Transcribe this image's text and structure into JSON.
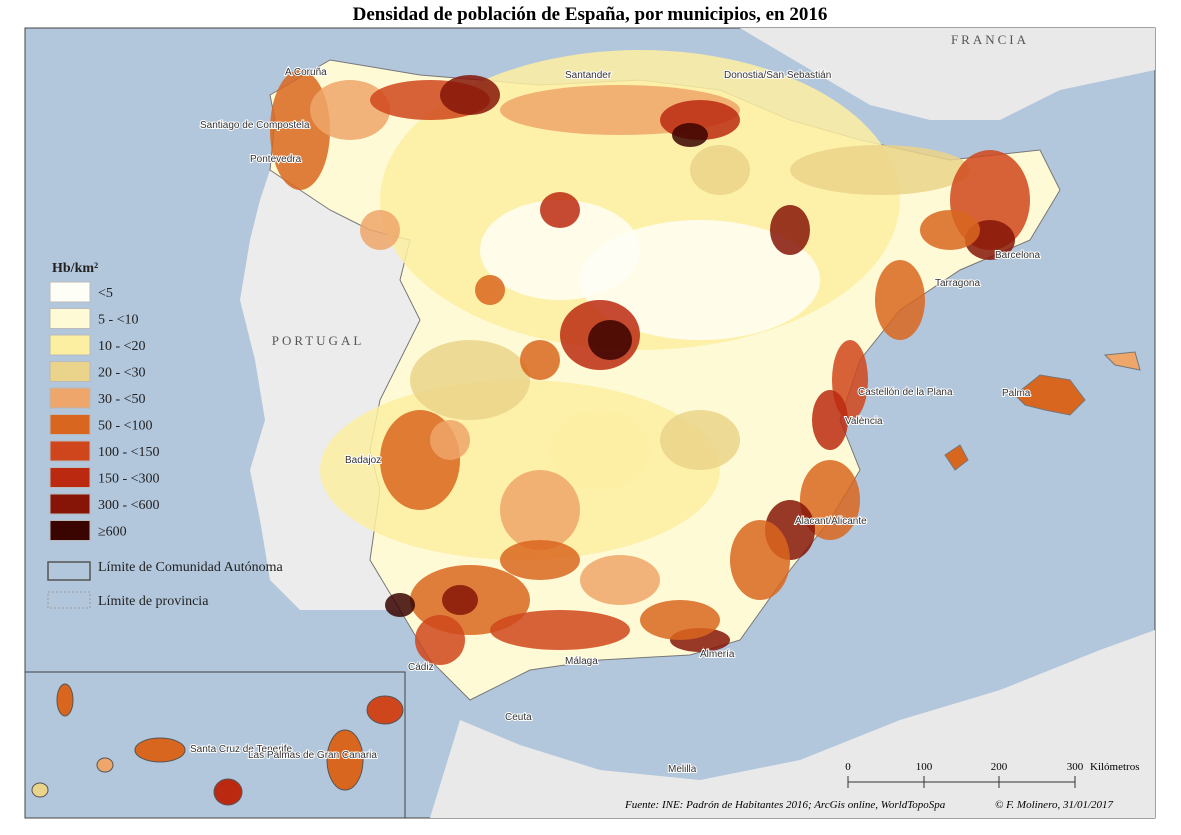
{
  "title": "Densidad de población de España, por municipios, en 2016",
  "countries": [
    "FRANCIA",
    "PORTUGAL"
  ],
  "places": [
    "A Coruña",
    "Santiago de Compostela",
    "Pontevedra",
    "Santander",
    "Donostia/San Sebastián",
    "Barcelona",
    "Tarragona",
    "Castellón de la Plana",
    "València",
    "Palma",
    "Alacant/Alicante",
    "Almería",
    "Málaga",
    "Cádiz",
    "Ceuta",
    "Melilla",
    "Badajoz",
    "Santa Cruz de Tenerife",
    "Las Palmas de Gran Canaria"
  ],
  "legend": {
    "title": "Hb/km²",
    "classes": [
      {
        "label": "<5",
        "color": "#fffef6"
      },
      {
        "label": "5 - <10",
        "color": "#fffad6"
      },
      {
        "label": "10 - <20",
        "color": "#fdefa2"
      },
      {
        "label": "20 - <30",
        "color": "#ead38a"
      },
      {
        "label": "30 - <50",
        "color": "#eea66a"
      },
      {
        "label": "50 - <100",
        "color": "#d9661e"
      },
      {
        "label": "100 - <150",
        "color": "#d0461c"
      },
      {
        "label": "150 - <300",
        "color": "#bb2a10"
      },
      {
        "label": "300 - <600",
        "color": "#861508"
      },
      {
        "label": "≥600",
        "color": "#3a0400"
      }
    ],
    "boundaries": [
      "Límite de Comunidad Autónoma",
      "Límite de provincia"
    ]
  },
  "scale": {
    "ticks": [
      "0",
      "100",
      "200",
      "300"
    ],
    "unit": "Kilómetros"
  },
  "source": "Fuente: INE: Padrón de Habitantes 2016; ArcGis online, WorldTopoSpa",
  "credit": "© F. Molinero, 31/01/2017"
}
